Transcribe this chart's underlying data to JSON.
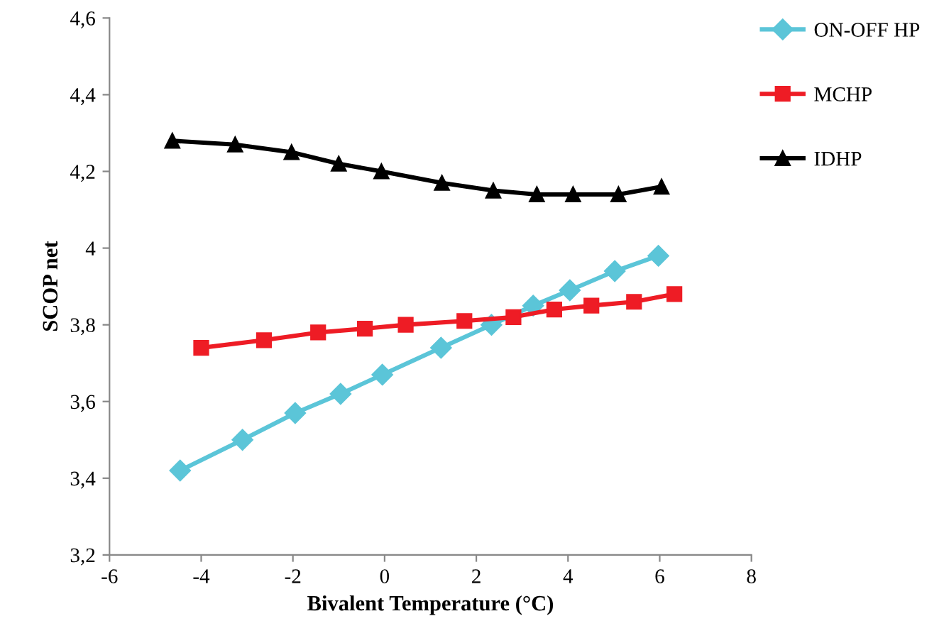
{
  "chart_data": {
    "type": "line",
    "xlabel": "Bivalent Temperature (°C)",
    "ylabel": "SCOP net",
    "xlim": [
      -6,
      8
    ],
    "xticks": [
      -6,
      -4,
      -2,
      0,
      2,
      4,
      6,
      8
    ],
    "ylim": [
      3.2,
      4.6
    ],
    "yticks": [
      {
        "value": 3.2,
        "label": "3,2"
      },
      {
        "value": 3.4,
        "label": "3,4"
      },
      {
        "value": 3.6,
        "label": "3,6"
      },
      {
        "value": 3.8,
        "label": "3,8"
      },
      {
        "value": 4.0,
        "label": "4"
      },
      {
        "value": 4.2,
        "label": "4,2"
      },
      {
        "value": 4.4,
        "label": "4,4"
      },
      {
        "value": 4.6,
        "label": "4,6"
      }
    ],
    "grid": false,
    "legend": "top right",
    "series": [
      {
        "name": "ON-OFF HP",
        "color": "#5bc5d8",
        "marker": "diamond",
        "x": [
          -4.46,
          -3.1,
          -1.95,
          -0.96,
          -0.05,
          1.23,
          2.33,
          3.24,
          4.04,
          5.02,
          5.97
        ],
        "values": [
          3.42,
          3.5,
          3.57,
          3.62,
          3.67,
          3.74,
          3.8,
          3.85,
          3.89,
          3.94,
          3.98
        ]
      },
      {
        "name": "MCHP",
        "color": "#ee1c25",
        "marker": "square",
        "x": [
          -4.0,
          -2.63,
          -1.45,
          -0.43,
          0.46,
          1.74,
          2.81,
          3.7,
          4.51,
          5.44,
          6.32
        ],
        "values": [
          3.74,
          3.76,
          3.78,
          3.79,
          3.8,
          3.81,
          3.82,
          3.84,
          3.85,
          3.86,
          3.88
        ]
      },
      {
        "name": "IDHP",
        "color": "#000000",
        "marker": "triangle",
        "x": [
          -4.63,
          -3.26,
          -2.03,
          -1.0,
          -0.07,
          1.25,
          2.37,
          3.32,
          4.11,
          5.1,
          6.04
        ],
        "values": [
          4.28,
          4.27,
          4.25,
          4.22,
          4.2,
          4.17,
          4.15,
          4.14,
          4.14,
          4.14,
          4.16
        ]
      }
    ]
  }
}
